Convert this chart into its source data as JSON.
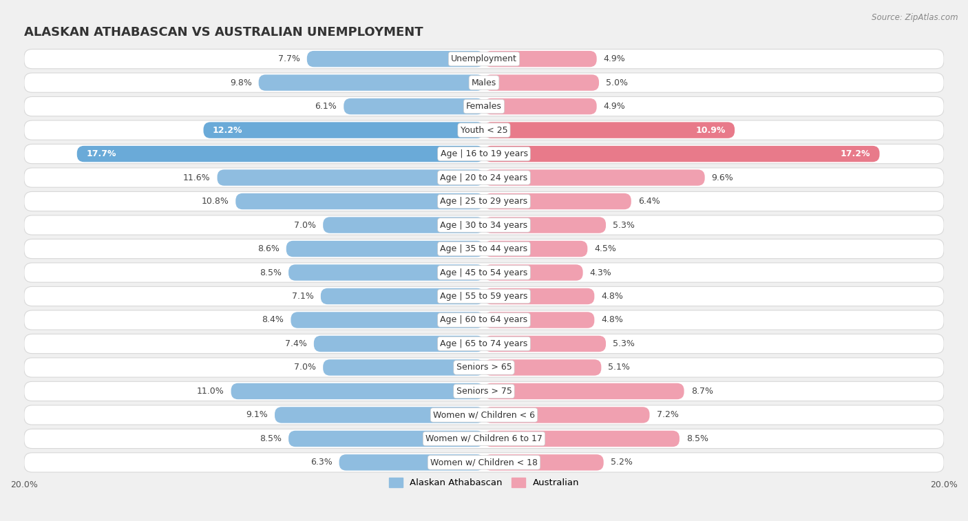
{
  "title": "ALASKAN ATHABASCAN VS AUSTRALIAN UNEMPLOYMENT",
  "source": "Source: ZipAtlas.com",
  "categories": [
    "Unemployment",
    "Males",
    "Females",
    "Youth < 25",
    "Age | 16 to 19 years",
    "Age | 20 to 24 years",
    "Age | 25 to 29 years",
    "Age | 30 to 34 years",
    "Age | 35 to 44 years",
    "Age | 45 to 54 years",
    "Age | 55 to 59 years",
    "Age | 60 to 64 years",
    "Age | 65 to 74 years",
    "Seniors > 65",
    "Seniors > 75",
    "Women w/ Children < 6",
    "Women w/ Children 6 to 17",
    "Women w/ Children < 18"
  ],
  "alaskan": [
    7.7,
    9.8,
    6.1,
    12.2,
    17.7,
    11.6,
    10.8,
    7.0,
    8.6,
    8.5,
    7.1,
    8.4,
    7.4,
    7.0,
    11.0,
    9.1,
    8.5,
    6.3
  ],
  "australian": [
    4.9,
    5.0,
    4.9,
    10.9,
    17.2,
    9.6,
    6.4,
    5.3,
    4.5,
    4.3,
    4.8,
    4.8,
    5.3,
    5.1,
    8.7,
    7.2,
    8.5,
    5.2
  ],
  "alaskan_color": "#8fbde0",
  "australian_color": "#f0a0b0",
  "alaskan_highlight_color": "#6aaad8",
  "australian_highlight_color": "#e87a8a",
  "highlight_rows": [
    3,
    4
  ],
  "xlim": 20.0,
  "bar_height": 0.68,
  "bg_color": "#f0f0f0",
  "row_bg": "#ffffff",
  "row_sep_color": "#d8d8d8",
  "legend_labels": [
    "Alaskan Athabascan",
    "Australian"
  ],
  "title_fontsize": 13,
  "label_fontsize": 9,
  "tick_fontsize": 9,
  "value_fontsize": 9
}
